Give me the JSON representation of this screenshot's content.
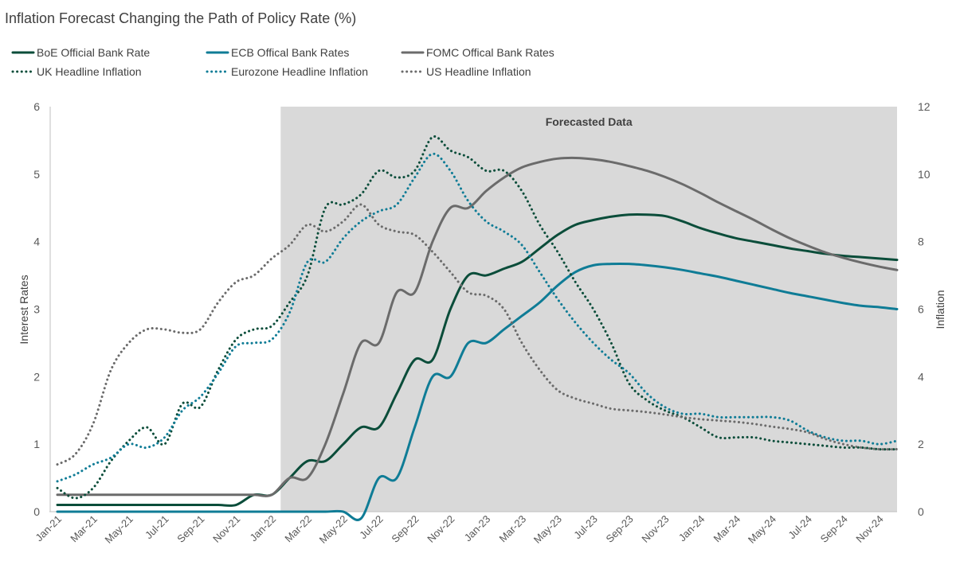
{
  "chart_data": {
    "type": "line",
    "title": "Inflation Forecast Changing the Path of Policy Rate (%)",
    "annotation": "Forecasted Data",
    "forecast_start": "Feb-22",
    "forecast_end": "Dec-24",
    "ylabel_left": "Interest Rates",
    "ylabel_right": "Inflation",
    "ylim_left": [
      0,
      6
    ],
    "ylim_right": [
      0,
      12
    ],
    "yticks_left": [
      "0",
      "1",
      "2",
      "3",
      "4",
      "5",
      "6"
    ],
    "yticks_right": [
      "0",
      "2",
      "4",
      "6",
      "8",
      "10",
      "12"
    ],
    "grid": false,
    "legend_position": "top-left",
    "x": [
      "Jan-21",
      "Feb-21",
      "Mar-21",
      "Apr-21",
      "May-21",
      "Jun-21",
      "Jul-21",
      "Aug-21",
      "Sep-21",
      "Oct-21",
      "Nov-21",
      "Dec-21",
      "Jan-22",
      "Feb-22",
      "Mar-22",
      "Apr-22",
      "May-22",
      "Jun-22",
      "Jul-22",
      "Aug-22",
      "Sep-22",
      "Oct-22",
      "Nov-22",
      "Dec-22",
      "Jan-23",
      "Feb-23",
      "Mar-23",
      "Apr-23",
      "May-23",
      "Jun-23",
      "Jul-23",
      "Aug-23",
      "Sep-23",
      "Oct-23",
      "Nov-23",
      "Dec-23",
      "Jan-24",
      "Feb-24",
      "Mar-24",
      "Apr-24",
      "May-24",
      "Jun-24",
      "Jul-24",
      "Aug-24",
      "Sep-24",
      "Oct-24",
      "Nov-24",
      "Dec-24"
    ],
    "x_tick_labels": [
      "Jan-21",
      "Mar-21",
      "May-21",
      "Jul-21",
      "Sep-21",
      "Nov-21",
      "Jan-22",
      "Mar-22",
      "May-22",
      "Jul-22",
      "Sep-22",
      "Nov-22",
      "Jan-23",
      "Mar-23",
      "May-23",
      "Jul-23",
      "Sep-23",
      "Nov-23",
      "Jan-24",
      "Mar-24",
      "May-24",
      "Jul-24",
      "Sep-24",
      "Nov-24"
    ],
    "series": [
      {
        "name": "BoE Official Bank Rate",
        "axis": "left",
        "style": "solid",
        "color": "#0b4d3a",
        "values": [
          0.1,
          0.1,
          0.1,
          0.1,
          0.1,
          0.1,
          0.1,
          0.1,
          0.1,
          0.1,
          0.1,
          0.25,
          0.25,
          0.5,
          0.75,
          0.75,
          1.0,
          1.25,
          1.25,
          1.75,
          2.25,
          2.25,
          3.0,
          3.5,
          3.5,
          3.6,
          3.7,
          3.9,
          4.1,
          4.25,
          4.32,
          4.37,
          4.4,
          4.4,
          4.38,
          4.3,
          4.2,
          4.12,
          4.05,
          4.0,
          3.95,
          3.9,
          3.86,
          3.82,
          3.79,
          3.77,
          3.75,
          3.73
        ]
      },
      {
        "name": "ECB Offical Bank Rates",
        "axis": "left",
        "style": "solid",
        "color": "#0f7c96",
        "values": [
          0,
          0,
          0,
          0,
          0,
          0,
          0,
          0,
          0,
          0,
          0,
          0,
          0,
          0,
          0,
          0,
          0,
          -0.1,
          0.5,
          0.5,
          1.25,
          2.0,
          2.0,
          2.5,
          2.5,
          2.7,
          2.9,
          3.1,
          3.35,
          3.55,
          3.65,
          3.67,
          3.67,
          3.65,
          3.62,
          3.58,
          3.53,
          3.48,
          3.42,
          3.36,
          3.3,
          3.24,
          3.19,
          3.14,
          3.09,
          3.05,
          3.03,
          3.0
        ]
      },
      {
        "name": "FOMC Offical Bank Rates",
        "axis": "left",
        "style": "solid",
        "color": "#6b6b6b",
        "values": [
          0.25,
          0.25,
          0.25,
          0.25,
          0.25,
          0.25,
          0.25,
          0.25,
          0.25,
          0.25,
          0.25,
          0.25,
          0.25,
          0.5,
          0.5,
          1.0,
          1.75,
          2.5,
          2.5,
          3.25,
          3.25,
          4.0,
          4.5,
          4.5,
          4.75,
          4.95,
          5.1,
          5.18,
          5.23,
          5.24,
          5.22,
          5.18,
          5.12,
          5.05,
          4.96,
          4.85,
          4.72,
          4.58,
          4.45,
          4.32,
          4.18,
          4.05,
          3.94,
          3.84,
          3.76,
          3.69,
          3.63,
          3.58
        ]
      },
      {
        "name": "UK Headline Inflation",
        "axis": "right",
        "style": "dotted",
        "color": "#0b4d3a",
        "values": [
          0.7,
          0.4,
          0.7,
          1.5,
          2.1,
          2.5,
          2.0,
          3.2,
          3.1,
          4.2,
          5.1,
          5.4,
          5.5,
          6.2,
          7.0,
          9.0,
          9.1,
          9.4,
          10.1,
          9.9,
          10.1,
          11.1,
          10.7,
          10.5,
          10.1,
          10.1,
          9.5,
          8.5,
          7.7,
          6.8,
          6.0,
          5.0,
          3.8,
          3.3,
          3.0,
          2.8,
          2.5,
          2.2,
          2.2,
          2.2,
          2.1,
          2.05,
          2.0,
          1.95,
          1.9,
          1.9,
          1.85,
          1.85
        ]
      },
      {
        "name": "Eurozone Headline Inflation",
        "axis": "right",
        "style": "dotted",
        "color": "#0f7c96",
        "values": [
          0.9,
          1.1,
          1.4,
          1.6,
          2.0,
          1.9,
          2.2,
          3.0,
          3.4,
          4.1,
          4.9,
          5.0,
          5.1,
          5.9,
          7.4,
          7.4,
          8.1,
          8.6,
          8.9,
          9.1,
          9.9,
          10.6,
          10.1,
          9.2,
          8.6,
          8.3,
          7.9,
          7.1,
          6.3,
          5.6,
          5.0,
          4.5,
          4.1,
          3.5,
          3.1,
          2.9,
          2.9,
          2.8,
          2.8,
          2.8,
          2.8,
          2.7,
          2.4,
          2.2,
          2.1,
          2.1,
          2.0,
          2.1
        ]
      },
      {
        "name": "US Headline Inflation",
        "axis": "right",
        "style": "dotted",
        "color": "#6b6b6b",
        "values": [
          1.4,
          1.7,
          2.6,
          4.2,
          5.0,
          5.4,
          5.4,
          5.3,
          5.4,
          6.2,
          6.8,
          7.0,
          7.5,
          7.9,
          8.5,
          8.3,
          8.6,
          9.1,
          8.5,
          8.3,
          8.2,
          7.7,
          7.1,
          6.5,
          6.4,
          6.0,
          5.0,
          4.2,
          3.6,
          3.35,
          3.2,
          3.05,
          3.0,
          2.95,
          2.88,
          2.8,
          2.74,
          2.7,
          2.66,
          2.6,
          2.52,
          2.45,
          2.35,
          2.15,
          2.0,
          1.9,
          1.85,
          1.85
        ]
      }
    ]
  }
}
